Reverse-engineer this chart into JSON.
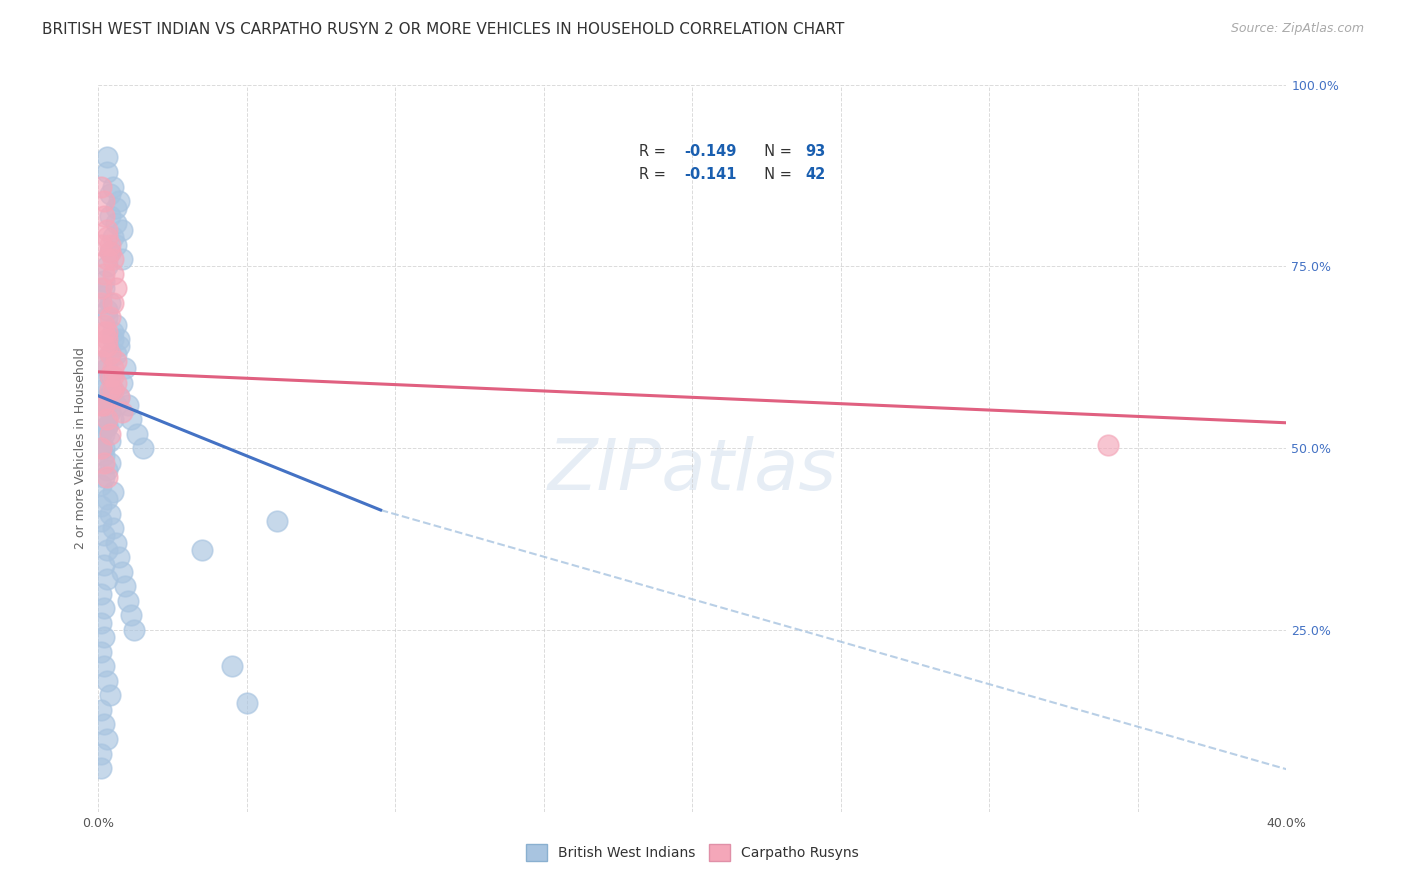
{
  "title": "BRITISH WEST INDIAN VS CARPATHO RUSYN 2 OR MORE VEHICLES IN HOUSEHOLD CORRELATION CHART",
  "source": "Source: ZipAtlas.com",
  "ylabel": "2 or more Vehicles in Household",
  "y_ticks": [
    0.0,
    0.25,
    0.5,
    0.75,
    1.0
  ],
  "y_tick_labels": [
    "",
    "25.0%",
    "50.0%",
    "75.0%",
    "100.0%"
  ],
  "x_ticks": [
    0.0,
    0.05,
    0.1,
    0.15,
    0.2,
    0.25,
    0.3,
    0.35,
    0.4
  ],
  "legend_r1": "R = -0.149",
  "legend_n1": "N = 93",
  "legend_r2": "R = -0.141",
  "legend_n2": "N = 42",
  "legend_label1": "British West Indians",
  "legend_label2": "Carpatho Rusyns",
  "blue_color": "#a8c4e0",
  "pink_color": "#f4a7b9",
  "blue_line_color": "#4472c4",
  "pink_line_color": "#e06080",
  "dashed_line_color": "#a8c4e0",
  "watermark": "ZIPatlas",
  "blue_scatter_x": [
    0.003,
    0.004,
    0.006,
    0.008,
    0.004,
    0.006,
    0.008,
    0.003,
    0.005,
    0.007,
    0.002,
    0.004,
    0.003,
    0.005,
    0.007,
    0.002,
    0.004,
    0.001,
    0.003,
    0.005,
    0.001,
    0.002,
    0.004,
    0.003,
    0.002,
    0.003,
    0.004,
    0.005,
    0.006,
    0.003,
    0.001,
    0.002,
    0.003,
    0.004,
    0.005,
    0.006,
    0.003,
    0.004,
    0.002,
    0.005,
    0.001,
    0.001,
    0.002,
    0.003,
    0.002,
    0.003,
    0.001,
    0.002,
    0.001,
    0.002,
    0.007,
    0.008,
    0.009,
    0.01,
    0.011,
    0.013,
    0.015,
    0.004,
    0.005,
    0.006,
    0.006,
    0.007,
    0.002,
    0.003,
    0.001,
    0.003,
    0.004,
    0.005,
    0.006,
    0.007,
    0.008,
    0.009,
    0.01,
    0.011,
    0.012,
    0.001,
    0.002,
    0.003,
    0.004,
    0.001,
    0.002,
    0.003,
    0.001,
    0.001,
    0.002,
    0.003,
    0.004,
    0.001,
    0.002,
    0.06,
    0.035,
    0.045,
    0.05
  ],
  "blue_scatter_y": [
    0.88,
    0.85,
    0.83,
    0.8,
    0.82,
    0.78,
    0.76,
    0.9,
    0.86,
    0.84,
    0.72,
    0.7,
    0.68,
    0.66,
    0.64,
    0.62,
    0.6,
    0.58,
    0.56,
    0.54,
    0.52,
    0.5,
    0.55,
    0.57,
    0.59,
    0.61,
    0.63,
    0.65,
    0.67,
    0.69,
    0.71,
    0.73,
    0.75,
    0.77,
    0.79,
    0.81,
    0.53,
    0.48,
    0.46,
    0.44,
    0.42,
    0.4,
    0.38,
    0.36,
    0.34,
    0.32,
    0.3,
    0.28,
    0.26,
    0.24,
    0.57,
    0.59,
    0.61,
    0.56,
    0.54,
    0.52,
    0.5,
    0.6,
    0.58,
    0.56,
    0.63,
    0.65,
    0.49,
    0.47,
    0.45,
    0.43,
    0.41,
    0.39,
    0.37,
    0.35,
    0.33,
    0.31,
    0.29,
    0.27,
    0.25,
    0.22,
    0.2,
    0.18,
    0.16,
    0.14,
    0.12,
    0.1,
    0.08,
    0.06,
    0.55,
    0.53,
    0.51,
    0.5,
    0.52,
    0.4,
    0.36,
    0.2,
    0.15
  ],
  "pink_scatter_x": [
    0.002,
    0.003,
    0.004,
    0.005,
    0.002,
    0.003,
    0.004,
    0.001,
    0.005,
    0.006,
    0.001,
    0.002,
    0.003,
    0.004,
    0.005,
    0.006,
    0.007,
    0.008,
    0.002,
    0.003,
    0.001,
    0.004,
    0.005,
    0.002,
    0.003,
    0.004,
    0.001,
    0.002,
    0.003,
    0.001,
    0.004,
    0.005,
    0.006,
    0.002,
    0.003,
    0.004,
    0.005,
    0.001,
    0.002,
    0.003,
    0.34,
    0.001
  ],
  "pink_scatter_y": [
    0.82,
    0.8,
    0.78,
    0.76,
    0.84,
    0.79,
    0.77,
    0.86,
    0.74,
    0.72,
    0.7,
    0.67,
    0.65,
    0.63,
    0.61,
    0.59,
    0.57,
    0.55,
    0.66,
    0.64,
    0.62,
    0.6,
    0.58,
    0.56,
    0.54,
    0.52,
    0.5,
    0.48,
    0.46,
    0.56,
    0.58,
    0.6,
    0.62,
    0.64,
    0.66,
    0.68,
    0.7,
    0.72,
    0.74,
    0.76,
    0.505,
    0.78
  ],
  "blue_line_x": [
    0.0,
    0.095
  ],
  "blue_line_y": [
    0.572,
    0.415
  ],
  "pink_line_x": [
    0.0,
    0.4
  ],
  "pink_line_y": [
    0.605,
    0.535
  ],
  "dashed_line_x": [
    0.095,
    0.45
  ],
  "dashed_line_y": [
    0.415,
    0.0
  ],
  "background_color": "#ffffff",
  "grid_color": "#cccccc",
  "title_fontsize": 11,
  "axis_label_fontsize": 9,
  "tick_fontsize": 9
}
